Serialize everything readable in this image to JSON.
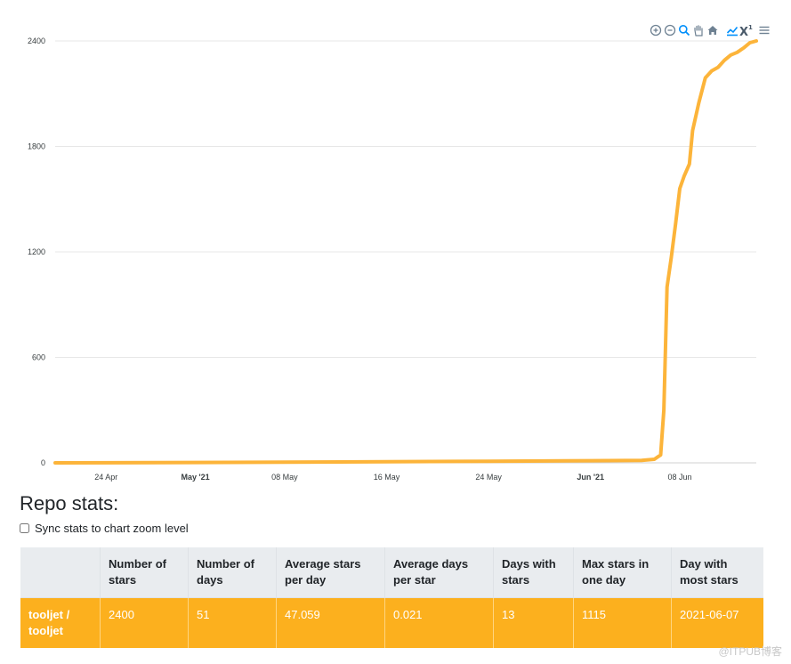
{
  "chart_data": {
    "type": "line",
    "title": "",
    "xlabel": "",
    "ylabel": "",
    "ylim": [
      0,
      2400
    ],
    "yticks": [
      0,
      600,
      1200,
      1800,
      2400
    ],
    "xlim": [
      "2021-04-20",
      "2021-06-14"
    ],
    "xticks": [
      {
        "date": "2021-04-24",
        "label": "24 Apr",
        "bold": false
      },
      {
        "date": "2021-05-01",
        "label": "May '21",
        "bold": true
      },
      {
        "date": "2021-05-08",
        "label": "08 May",
        "bold": false
      },
      {
        "date": "2021-05-16",
        "label": "16 May",
        "bold": false
      },
      {
        "date": "2021-05-24",
        "label": "24 May",
        "bold": false
      },
      {
        "date": "2021-06-01",
        "label": "Jun '21",
        "bold": true
      },
      {
        "date": "2021-06-08",
        "label": "08 Jun",
        "bold": false
      }
    ],
    "grid": true,
    "series": [
      {
        "name": "tooljet / tooljet",
        "color": "#fcb43a",
        "points": [
          {
            "x": "2021-04-20",
            "y": 0
          },
          {
            "x": "2021-05-01",
            "y": 2
          },
          {
            "x": "2021-05-16",
            "y": 6
          },
          {
            "x": "2021-05-24",
            "y": 9
          },
          {
            "x": "2021-06-01",
            "y": 12
          },
          {
            "x": "2021-06-05",
            "y": 14
          },
          {
            "x": "2021-06-06",
            "y": 20
          },
          {
            "x": "2021-06-06 12:00",
            "y": 45
          },
          {
            "x": "2021-06-06 18:00",
            "y": 300
          },
          {
            "x": "2021-06-07",
            "y": 1000
          },
          {
            "x": "2021-06-07 08:00",
            "y": 1170
          },
          {
            "x": "2021-06-07 16:00",
            "y": 1360
          },
          {
            "x": "2021-06-08",
            "y": 1560
          },
          {
            "x": "2021-06-08 08:00",
            "y": 1630
          },
          {
            "x": "2021-06-08 18:00",
            "y": 1700
          },
          {
            "x": "2021-06-09",
            "y": 1890
          },
          {
            "x": "2021-06-09 12:00",
            "y": 2050
          },
          {
            "x": "2021-06-10",
            "y": 2190
          },
          {
            "x": "2021-06-10 12:00",
            "y": 2230
          },
          {
            "x": "2021-06-11",
            "y": 2250
          },
          {
            "x": "2021-06-11 12:00",
            "y": 2290
          },
          {
            "x": "2021-06-12",
            "y": 2320
          },
          {
            "x": "2021-06-12 12:00",
            "y": 2335
          },
          {
            "x": "2021-06-13",
            "y": 2360
          },
          {
            "x": "2021-06-13 12:00",
            "y": 2390
          },
          {
            "x": "2021-06-14",
            "y": 2400
          }
        ]
      }
    ]
  },
  "toolbar": {
    "icons": [
      "zoom-in-icon",
      "zoom-out-icon",
      "selection-zoom-icon",
      "pan-icon",
      "reset-home-icon",
      "linear-scale-icon",
      "log-scale-icon",
      "menu-icon"
    ],
    "active_color": "#008ffb",
    "idle_color": "#6e8192"
  },
  "stats": {
    "title": "Repo stats:",
    "sync_label": "Sync stats to chart zoom level",
    "columns": [
      "",
      "Number of stars",
      "Number of days",
      "Average stars per day",
      "Average days per star",
      "Days with stars",
      "Max stars in one day",
      "Day with most stars"
    ],
    "rows": [
      [
        "tooljet / tooljet",
        "2400",
        "51",
        "47.059",
        "0.021",
        "13",
        "1115",
        "2021-06-07"
      ]
    ]
  },
  "watermark": "@ITPUB博客"
}
